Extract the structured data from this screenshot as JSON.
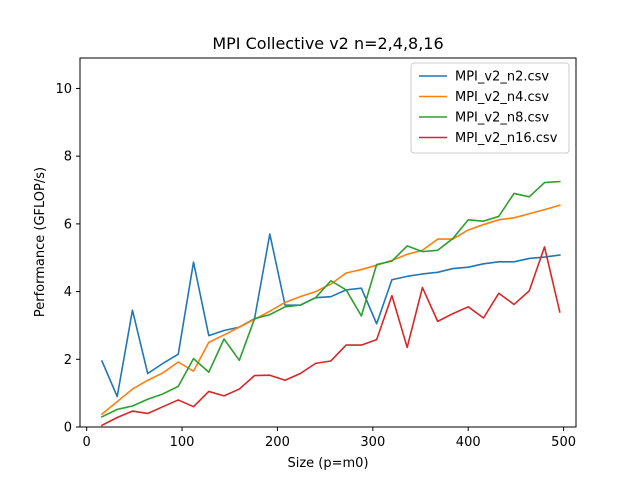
{
  "chart_data": {
    "type": "line",
    "title": "MPI Collective v2 n=2,4,8,16",
    "xlabel": "Size (p=m0)",
    "ylabel": "Performance (GFLOP/s)",
    "xlim": [
      -7,
      513
    ],
    "ylim": [
      0,
      10.9
    ],
    "xticks": [
      0,
      100,
      200,
      300,
      400,
      500
    ],
    "yticks": [
      0,
      2,
      4,
      6,
      8,
      10
    ],
    "grid": false,
    "legend_position": "top-right",
    "x": [
      16,
      32,
      48,
      64,
      80,
      96,
      112,
      128,
      144,
      160,
      176,
      192,
      208,
      224,
      240,
      256,
      272,
      288,
      304,
      320,
      336,
      352,
      368,
      384,
      400,
      416,
      432,
      448,
      464,
      480,
      496
    ],
    "series": [
      {
        "name": "MPI_v2_n2.csv",
        "color": "#1f77b4",
        "values": [
          1.95,
          0.9,
          3.45,
          1.58,
          1.88,
          2.15,
          4.87,
          2.7,
          2.85,
          2.95,
          3.2,
          5.7,
          3.6,
          3.6,
          3.82,
          3.85,
          4.05,
          4.1,
          3.05,
          4.35,
          4.45,
          4.52,
          4.57,
          4.68,
          4.72,
          4.82,
          4.88,
          4.88,
          4.98,
          5.02,
          5.08
        ]
      },
      {
        "name": "MPI_v2_n4.csv",
        "color": "#ff7f0e",
        "values": [
          0.38,
          0.75,
          1.12,
          1.38,
          1.6,
          1.92,
          1.65,
          2.5,
          2.72,
          2.95,
          3.18,
          3.42,
          3.68,
          3.85,
          4.0,
          4.22,
          4.55,
          4.65,
          4.78,
          4.92,
          5.1,
          5.22,
          5.55,
          5.55,
          5.82,
          5.98,
          6.12,
          6.18,
          6.3,
          6.42,
          6.55
        ]
      },
      {
        "name": "MPI_v2_n8.csv",
        "color": "#2ca02c",
        "values": [
          0.3,
          0.52,
          0.62,
          0.82,
          0.98,
          1.2,
          2.02,
          1.62,
          2.6,
          1.97,
          3.2,
          3.32,
          3.55,
          3.6,
          3.82,
          4.32,
          4.05,
          3.28,
          4.8,
          4.9,
          5.35,
          5.18,
          5.22,
          5.57,
          6.12,
          6.08,
          6.22,
          6.9,
          6.8,
          7.22,
          7.25
        ]
      },
      {
        "name": "MPI_v2_n16.csv",
        "color": "#d62728",
        "values": [
          0.05,
          0.28,
          0.47,
          0.4,
          0.6,
          0.8,
          0.6,
          1.05,
          0.92,
          1.12,
          1.52,
          1.53,
          1.38,
          1.58,
          1.88,
          1.95,
          2.42,
          2.42,
          2.58,
          3.88,
          2.35,
          4.12,
          3.12,
          3.35,
          3.55,
          3.22,
          3.95,
          3.62,
          4.02,
          5.32,
          3.4
        ]
      }
    ]
  }
}
